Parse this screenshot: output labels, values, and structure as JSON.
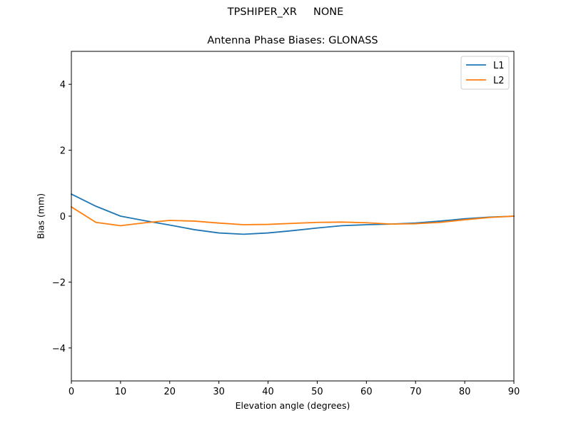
{
  "figure": {
    "suptitle": "TPSHIPER_XR     NONE",
    "title": "Antenna Phase Biases: GLONASS",
    "xlabel": "Elevation angle (degrees)",
    "ylabel": "Bias (mm)"
  },
  "chart_data": {
    "type": "line",
    "suptitle": "TPSHIPER_XR     NONE",
    "title": "Antenna Phase Biases: GLONASS",
    "xlabel": "Elevation angle (degrees)",
    "ylabel": "Bias (mm)",
    "xlim": [
      0,
      90
    ],
    "ylim": [
      -5,
      5
    ],
    "xticks": [
      0,
      10,
      20,
      30,
      40,
      50,
      60,
      70,
      80,
      90
    ],
    "yticks": [
      -4,
      -2,
      0,
      2,
      4
    ],
    "ytick_labels": [
      "−4",
      "−2",
      "0",
      "2",
      "4"
    ],
    "grid": false,
    "legend_position": "upper right",
    "x": [
      0,
      5,
      10,
      15,
      20,
      25,
      30,
      35,
      40,
      45,
      50,
      55,
      60,
      65,
      70,
      75,
      80,
      85,
      90
    ],
    "series": [
      {
        "name": "L1",
        "color": "#1f77b4",
        "values": [
          0.67,
          0.3,
          0.0,
          -0.14,
          -0.27,
          -0.41,
          -0.51,
          -0.55,
          -0.51,
          -0.44,
          -0.36,
          -0.29,
          -0.26,
          -0.24,
          -0.21,
          -0.15,
          -0.08,
          -0.03,
          0.0
        ]
      },
      {
        "name": "L2",
        "color": "#ff7f0e",
        "values": [
          0.28,
          -0.19,
          -0.29,
          -0.2,
          -0.13,
          -0.15,
          -0.21,
          -0.26,
          -0.25,
          -0.22,
          -0.19,
          -0.18,
          -0.2,
          -0.24,
          -0.23,
          -0.19,
          -0.11,
          -0.04,
          0.0
        ]
      }
    ]
  }
}
